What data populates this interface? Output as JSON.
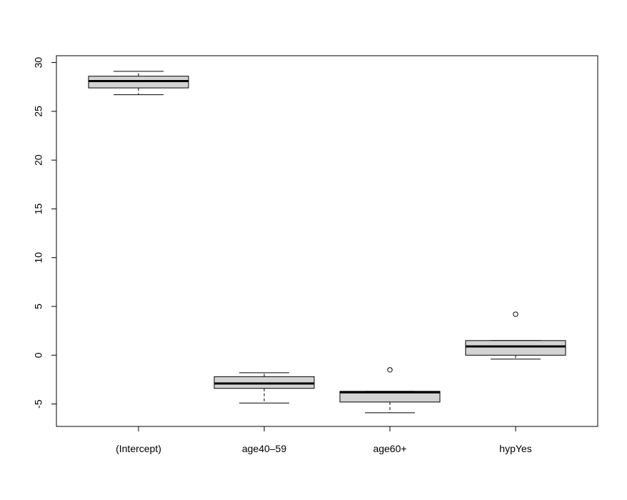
{
  "chart_data": {
    "type": "boxplot",
    "title": "",
    "xlabel": "",
    "ylabel": "",
    "categories": [
      "(Intercept)",
      "age40–59",
      "age60+",
      "hypYes"
    ],
    "y_ticks": [
      -5,
      0,
      5,
      10,
      15,
      20,
      25,
      30
    ],
    "y_tick_labels": [
      "-5",
      "0",
      "5",
      "10",
      "15",
      "20",
      "25",
      "30"
    ],
    "ylim": [
      -7.3,
      30.7
    ],
    "grid": false,
    "box_fill": "#d3d3d3",
    "boxes": [
      {
        "label": "(Intercept)",
        "whisker_low": 26.7,
        "q1": 27.4,
        "median": 28.1,
        "q3": 28.6,
        "whisker_high": 29.1,
        "outliers": []
      },
      {
        "label": "age40–59",
        "whisker_low": -4.9,
        "q1": -3.4,
        "median": -2.9,
        "q3": -2.2,
        "whisker_high": -1.8,
        "outliers": []
      },
      {
        "label": "age60+",
        "whisker_low": -5.9,
        "q1": -4.8,
        "median": -3.8,
        "q3": -3.7,
        "whisker_high": -3.7,
        "outliers": [
          -1.5
        ]
      },
      {
        "label": "hypYes",
        "whisker_low": -0.4,
        "q1": 0.0,
        "median": 0.9,
        "q3": 1.5,
        "whisker_high": 1.5,
        "outliers": [
          4.2
        ]
      }
    ]
  }
}
